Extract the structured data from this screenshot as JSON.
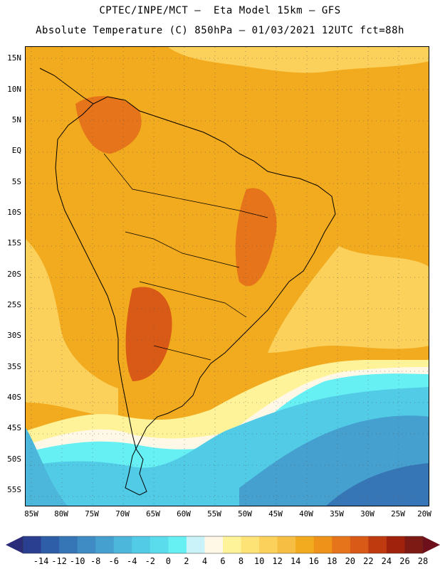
{
  "header": {
    "line1": "CPTEC/INPE/MCT –  Eta Model 15km – GFS",
    "line2": "Absolute Temperature (C) 850hPa – 01/03/2021 12UTC fct=88h"
  },
  "map": {
    "lat_labels": [
      "15N",
      "10N",
      "5N",
      "EQ",
      "5S",
      "10S",
      "15S",
      "20S",
      "25S",
      "30S",
      "35S",
      "40S",
      "45S",
      "50S",
      "55S"
    ],
    "lat_values": [
      15,
      10,
      5,
      0,
      -5,
      -10,
      -15,
      -20,
      -25,
      -30,
      -35,
      -40,
      -45,
      -50,
      -55
    ],
    "lon_labels": [
      "85W",
      "80W",
      "75W",
      "70W",
      "65W",
      "60W",
      "55W",
      "50W",
      "45W",
      "40W",
      "35W",
      "30W",
      "25W",
      "20W"
    ],
    "lon_values": [
      -85,
      -80,
      -75,
      -70,
      -65,
      -60,
      -55,
      -50,
      -45,
      -40,
      -35,
      -30,
      -25,
      -20
    ],
    "extent": {
      "lon_min": -85,
      "lon_max": -20,
      "lat_min": -58,
      "lat_max": 16
    }
  },
  "colorbar": {
    "labels": [
      "-14",
      "-12",
      "-10",
      "-8",
      "-6",
      "-4",
      "-2",
      "0",
      "2",
      "4",
      "6",
      "8",
      "10",
      "12",
      "14",
      "16",
      "18",
      "20",
      "22",
      "24",
      "26",
      "28"
    ],
    "colors": [
      "#2a3f8f",
      "#2f5ea8",
      "#3776b6",
      "#3f8cc4",
      "#45a0cf",
      "#4cb6db",
      "#52cbe6",
      "#5adcec",
      "#66f0f4",
      "#c9f3f8",
      "#fff8e6",
      "#fff39a",
      "#fde275",
      "#fbd15b",
      "#f6bf44",
      "#f2aa1e",
      "#ee9219",
      "#e5741a",
      "#d95a16",
      "#c03a10",
      "#a0220d",
      "#7d1a14"
    ],
    "left_arrow_color": "#2a2c7a",
    "right_arrow_color": "#6e0f1c"
  },
  "colors": {
    "cold_ocean": "#3f8cc4",
    "cyan": "#5adcec",
    "pale": "#fff8e6",
    "yellow": "#fde275",
    "orange": "#f2aa1e",
    "dark_orange": "#e5741a",
    "red": "#c03a10",
    "coast": "#000000"
  }
}
